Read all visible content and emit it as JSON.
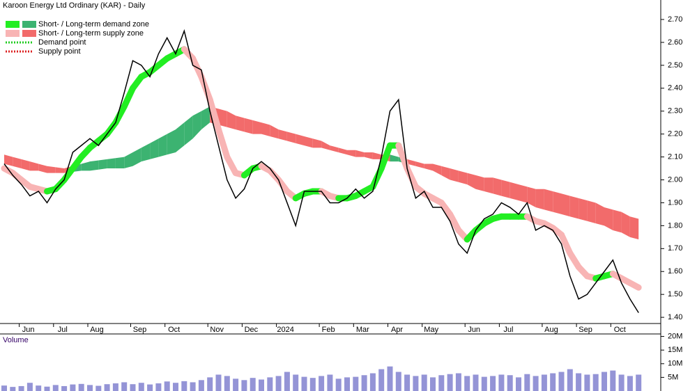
{
  "chart_data": {
    "type": "stock",
    "title": "Karoon Energy Ltd Ordinary (KAR) - Daily",
    "categories": [
      null,
      null,
      "Jun",
      null,
      null,
      null,
      "Jul",
      null,
      null,
      null,
      "Aug",
      null,
      null,
      null,
      null,
      "Sep",
      null,
      null,
      null,
      "Oct",
      null,
      null,
      null,
      null,
      "Nov",
      null,
      null,
      null,
      "Dec",
      null,
      null,
      null,
      "2024",
      null,
      null,
      null,
      null,
      "Feb",
      null,
      null,
      null,
      "Mar",
      null,
      null,
      null,
      "Apr",
      null,
      null,
      null,
      "May",
      null,
      null,
      null,
      null,
      "Jun",
      null,
      null,
      null,
      "Jul",
      null,
      null,
      null,
      null,
      "Aug",
      null,
      null,
      null,
      "Sep",
      null,
      null,
      null,
      "Oct",
      null,
      null,
      null
    ],
    "series": [
      {
        "name": "Close",
        "color": "#000000",
        "values": [
          2.07,
          2.02,
          1.98,
          1.93,
          1.95,
          1.9,
          1.96,
          2.0,
          2.12,
          2.15,
          2.18,
          2.15,
          2.2,
          2.25,
          2.38,
          2.52,
          2.5,
          2.45,
          2.55,
          2.62,
          2.55,
          2.65,
          2.5,
          2.48,
          2.3,
          2.15,
          2.0,
          1.92,
          1.96,
          2.05,
          2.08,
          2.05,
          2.0,
          1.9,
          1.8,
          1.95,
          1.95,
          1.95,
          1.9,
          1.9,
          1.92,
          1.96,
          1.92,
          1.95,
          2.1,
          2.3,
          2.35,
          2.05,
          1.92,
          1.95,
          1.88,
          1.88,
          1.82,
          1.72,
          1.68,
          1.78,
          1.83,
          1.85,
          1.9,
          1.88,
          1.85,
          1.9,
          1.78,
          1.8,
          1.78,
          1.72,
          1.58,
          1.48,
          1.5,
          1.55,
          1.6,
          1.65,
          1.55,
          1.48,
          1.42
        ]
      }
    ],
    "short_term_zone": {
      "demand_color": "#22ee22",
      "supply_color": "#f8b4b4",
      "values": [
        2.05,
        2.03,
        2.0,
        1.97,
        1.96,
        1.95,
        1.96,
        2.0,
        2.05,
        2.1,
        2.14,
        2.17,
        2.2,
        2.25,
        2.32,
        2.4,
        2.45,
        2.47,
        2.5,
        2.53,
        2.55,
        2.57,
        2.53,
        2.45,
        2.35,
        2.22,
        2.1,
        2.03,
        2.02,
        2.05,
        2.06,
        2.04,
        2.0,
        1.95,
        1.92,
        1.94,
        1.95,
        1.95,
        1.93,
        1.92,
        1.92,
        1.93,
        1.95,
        1.97,
        2.05,
        2.15,
        2.15,
        2.05,
        1.97,
        1.94,
        1.92,
        1.9,
        1.85,
        1.78,
        1.74,
        1.78,
        1.81,
        1.83,
        1.84,
        1.84,
        1.84,
        1.84,
        1.82,
        1.81,
        1.79,
        1.76,
        1.68,
        1.62,
        1.58,
        1.57,
        1.58,
        1.59,
        1.57,
        1.55,
        1.53
      ]
    },
    "long_term_zone": {
      "demand_color": "#3cb371",
      "supply_color": "#f26b6b",
      "upper": [
        2.11,
        2.1,
        2.09,
        2.08,
        2.07,
        2.06,
        2.055,
        2.05,
        2.06,
        2.07,
        2.08,
        2.085,
        2.09,
        2.095,
        2.1,
        2.12,
        2.14,
        2.16,
        2.18,
        2.2,
        2.22,
        2.25,
        2.28,
        2.3,
        2.32,
        2.31,
        2.3,
        2.28,
        2.27,
        2.26,
        2.25,
        2.24,
        2.22,
        2.21,
        2.2,
        2.19,
        2.18,
        2.17,
        2.15,
        2.14,
        2.13,
        2.13,
        2.12,
        2.12,
        2.11,
        2.11,
        2.1,
        2.09,
        2.08,
        2.07,
        2.07,
        2.06,
        2.05,
        2.04,
        2.03,
        2.02,
        2.01,
        2.01,
        2.0,
        1.99,
        1.98,
        1.97,
        1.96,
        1.96,
        1.95,
        1.94,
        1.93,
        1.92,
        1.91,
        1.9,
        1.88,
        1.87,
        1.86,
        1.84,
        1.83
      ],
      "lower": [
        2.07,
        2.06,
        2.05,
        2.04,
        2.04,
        2.03,
        2.03,
        2.03,
        2.035,
        2.04,
        2.04,
        2.045,
        2.05,
        2.05,
        2.05,
        2.06,
        2.08,
        2.09,
        2.1,
        2.11,
        2.12,
        2.15,
        2.18,
        2.22,
        2.25,
        2.24,
        2.23,
        2.22,
        2.21,
        2.2,
        2.2,
        2.19,
        2.18,
        2.17,
        2.16,
        2.15,
        2.14,
        2.14,
        2.13,
        2.12,
        2.11,
        2.1,
        2.1,
        2.09,
        2.09,
        2.08,
        2.08,
        2.07,
        2.06,
        2.05,
        2.04,
        2.02,
        2.0,
        1.99,
        1.98,
        1.96,
        1.95,
        1.94,
        1.93,
        1.92,
        1.91,
        1.9,
        1.88,
        1.87,
        1.86,
        1.85,
        1.84,
        1.83,
        1.82,
        1.81,
        1.8,
        1.78,
        1.77,
        1.75,
        1.74
      ]
    },
    "legend": [
      {
        "label": "Short- / Long-term demand zone",
        "colors": [
          "#22ee22",
          "#3cb371"
        ]
      },
      {
        "label": "Short- / Long-term supply zone",
        "colors": [
          "#f8b4b4",
          "#f26b6b"
        ]
      },
      {
        "label": "Demand point",
        "colors": [
          "#22cc22"
        ]
      },
      {
        "label": "Supply point",
        "colors": [
          "#dd2222"
        ]
      }
    ],
    "ylim": [
      1.373,
      2.785
    ],
    "yticks": [
      {
        "value": 1.4,
        "label": "1.40"
      },
      {
        "value": 1.5,
        "label": "1.50"
      },
      {
        "value": 1.6,
        "label": "1.60"
      },
      {
        "value": 1.7,
        "label": "1.70"
      },
      {
        "value": 1.8,
        "label": "1.80"
      },
      {
        "value": 1.9,
        "label": "1.90"
      },
      {
        "value": 2.0,
        "label": "2.00"
      },
      {
        "value": 2.1,
        "label": "2.10"
      },
      {
        "value": 2.2,
        "label": "2.20"
      },
      {
        "value": 2.3,
        "label": "2.30"
      },
      {
        "value": 2.4,
        "label": "2.40"
      },
      {
        "value": 2.5,
        "label": "2.50"
      },
      {
        "value": 2.6,
        "label": "2.60"
      },
      {
        "value": 2.7,
        "label": "2.70"
      }
    ],
    "volume": {
      "title": "Volume",
      "color": "#7070c8",
      "values": [
        2,
        1.5,
        1.8,
        3,
        2,
        1.6,
        2.2,
        1.8,
        2.4,
        2.6,
        2.2,
        1.9,
        2.5,
        2.8,
        3.2,
        2.5,
        3,
        2.4,
        2.8,
        3.5,
        3,
        3.6,
        3.2,
        4,
        5,
        6,
        5.5,
        4.5,
        4,
        4.8,
        4.2,
        5,
        5.5,
        7,
        6,
        5.2,
        4.8,
        5.5,
        6,
        4.5,
        5,
        5.2,
        5.8,
        6.5,
        8,
        9,
        7,
        6,
        5.5,
        6,
        5,
        5.8,
        6.2,
        6.5,
        5.5,
        6,
        5.2,
        5.5,
        6,
        5.8,
        5,
        6.2,
        5.5,
        6,
        6.5,
        7,
        8,
        6.5,
        6,
        6.2,
        7,
        7.5,
        6,
        5.5,
        6
      ],
      "ylim": [
        0,
        20.4
      ],
      "yticks": [
        {
          "value": 5,
          "label": "5M"
        },
        {
          "value": 10,
          "label": "10M"
        },
        {
          "value": 15,
          "label": "15M"
        },
        {
          "value": 20,
          "label": "20M"
        }
      ]
    }
  }
}
